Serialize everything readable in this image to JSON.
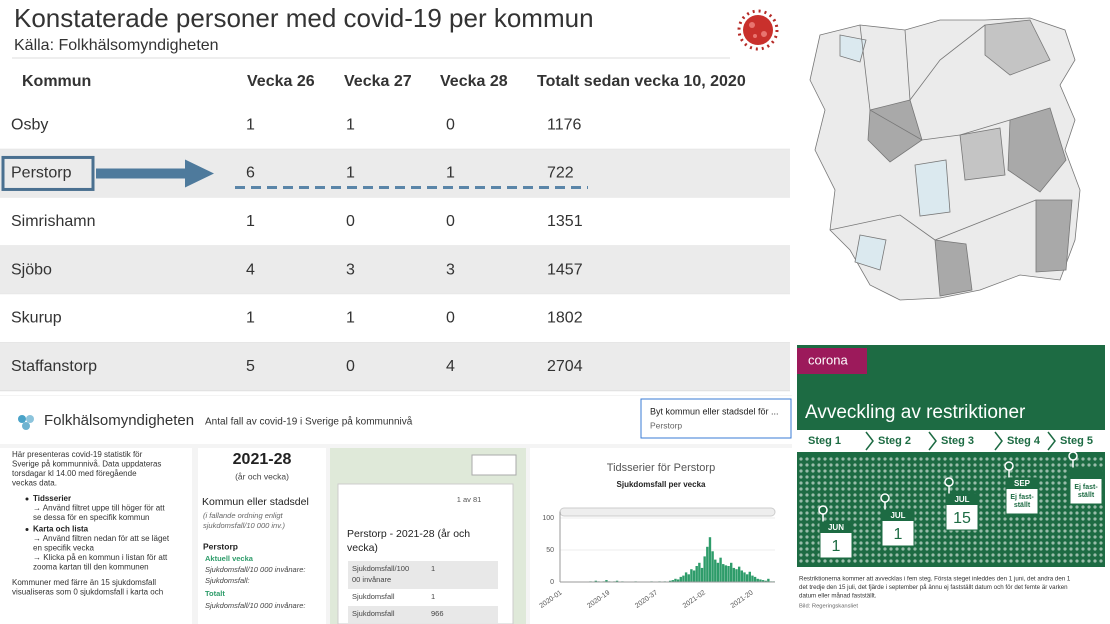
{
  "table": {
    "title": "Konstaterade personer med covid-19 per kommun",
    "source": "Källa: Folkhälsomyndigheten",
    "columns": [
      "Kommun",
      "Vecka 26",
      "Vecka 27",
      "Vecka 28",
      "Totalt sedan vecka 10, 2020"
    ],
    "rows": [
      [
        "Osby",
        1,
        1,
        0,
        1176
      ],
      [
        "Perstorp",
        6,
        1,
        1,
        722
      ],
      [
        "Simrishamn",
        1,
        0,
        0,
        1351
      ],
      [
        "Sjöbo",
        4,
        3,
        3,
        1457
      ],
      [
        "Skurup",
        1,
        1,
        0,
        1802
      ],
      [
        "Staffanstorp",
        5,
        0,
        4,
        2704
      ]
    ]
  },
  "dashboard": {
    "brand": "Folkhälsomyndigheten",
    "heading": "Antal fall av covid-19 i Sverige på kommunnivå",
    "selector_label": "Byt kommun eller stadsdel för ...",
    "selector_value": "Perstorp",
    "intro": [
      "Här presenteras covid-19 statistik för",
      "Sverige på kommunnivå. Data uppdateras",
      "torsdagar kl 14.00 med föregående",
      "veckas data."
    ],
    "bullets": [
      {
        "title": "Tidsserier",
        "lines": [
          "→ Använd filtret uppe till höger för att",
          "se dessa för en specifik kommun"
        ]
      },
      {
        "title": "Karta och lista",
        "lines": [
          "→ Använd filtren nedan för att se läget",
          "en specifik vecka",
          "→ Klicka på en kommun i listan för att",
          "zooma kartan till den kommunen"
        ]
      }
    ],
    "note": [
      "Kommuner med färre än 15 sjukdomsfall",
      "visualiseras som 0 sjukdomsfall i karta och"
    ],
    "week": "2021-28",
    "week_caption": "(år och vecka)",
    "list_title": "Kommun eller stadsdel",
    "list_caption": [
      "(i fallande ordning enligt",
      "sjukdomsfall/10 000 inv.)"
    ],
    "list_item": "Perstorp",
    "current_label": "Aktuell vecka",
    "current_rows": [
      "Sjukdomsfall/10 000 invånare:",
      "Sjukdomsfall:"
    ],
    "total_label": "Totalt",
    "total_rows": [
      "Sjukdomsfall/10 000 invånare:"
    ],
    "pager": "1 av 81",
    "popup": {
      "title": [
        "Perstorp - 2021-28 (år och",
        "vecka)"
      ],
      "rows": [
        [
          [
            "Sjukdomsfall/100",
            "00 invånare"
          ],
          1
        ],
        [
          [
            "Sjukdomsfall"
          ],
          1
        ],
        [
          [
            "Sjukdomsfall"
          ],
          966
        ]
      ]
    },
    "timeseries": {
      "type": "bar",
      "title": "Tidsserier för Perstorp",
      "subtitle": "Sjukdomsfall per vecka",
      "categories": [
        "2020-01",
        null,
        null,
        null,
        null,
        null,
        null,
        null,
        null,
        null,
        null,
        null,
        null,
        null,
        null,
        null,
        null,
        null,
        "2020-19",
        null,
        null,
        null,
        null,
        null,
        null,
        null,
        null,
        null,
        null,
        null,
        null,
        null,
        null,
        null,
        null,
        null,
        "2020-37",
        null,
        null,
        null,
        null,
        null,
        null,
        null,
        null,
        null,
        null,
        null,
        null,
        null,
        null,
        null,
        null,
        null,
        "2021-02",
        null,
        null,
        null,
        null,
        null,
        null,
        null,
        null,
        null,
        null,
        null,
        null,
        null,
        null,
        null,
        null,
        null,
        "2021-20",
        null,
        null,
        null,
        null,
        null,
        null,
        null,
        null
      ],
      "values": [
        0,
        0,
        0,
        0,
        0,
        0,
        0,
        0,
        0,
        0,
        0,
        1,
        0,
        2,
        1,
        0,
        1,
        3,
        1,
        0,
        1,
        2,
        0,
        1,
        0,
        0,
        0,
        0,
        1,
        0,
        0,
        0,
        0,
        0,
        1,
        0,
        0,
        1,
        0,
        1,
        0,
        2,
        3,
        5,
        4,
        8,
        10,
        15,
        12,
        20,
        18,
        25,
        30,
        22,
        40,
        55,
        70,
        48,
        35,
        30,
        38,
        28,
        26,
        25,
        30,
        22,
        20,
        24,
        18,
        15,
        12,
        16,
        10,
        8,
        5,
        4,
        3,
        2,
        5,
        1,
        1
      ],
      "color": "#2e9c6a",
      "ylim": [
        0,
        110
      ],
      "yticks": [
        0,
        50,
        100
      ]
    }
  },
  "corona": {
    "tag": "corona",
    "title": "Avveckling av restriktioner",
    "steps": [
      "Steg 1",
      "Steg 2",
      "Steg 3",
      "Steg 4",
      "Steg 5"
    ],
    "dates": [
      {
        "month": "JUN",
        "day": [
          "1"
        ]
      },
      {
        "month": "JUL",
        "day": [
          "1"
        ]
      },
      {
        "month": "JUL",
        "day": [
          "15"
        ]
      },
      {
        "month": "SEP",
        "day": [
          "Ej fast-",
          "ställt"
        ]
      },
      {
        "month": null,
        "day": [
          "Ej fast-",
          "ställt"
        ]
      }
    ],
    "caption": [
      "Restriktionerna kommer att avvecklas i fem steg. Första steget inleddes den 1 juni, det andra den 1",
      "det tredje den 15 juli, det fjärde i september på ännu ej fastställt datum och för det femte är varken",
      "datum eller månad fastställt."
    ],
    "credit": "Bild: Regeringskansliet"
  }
}
